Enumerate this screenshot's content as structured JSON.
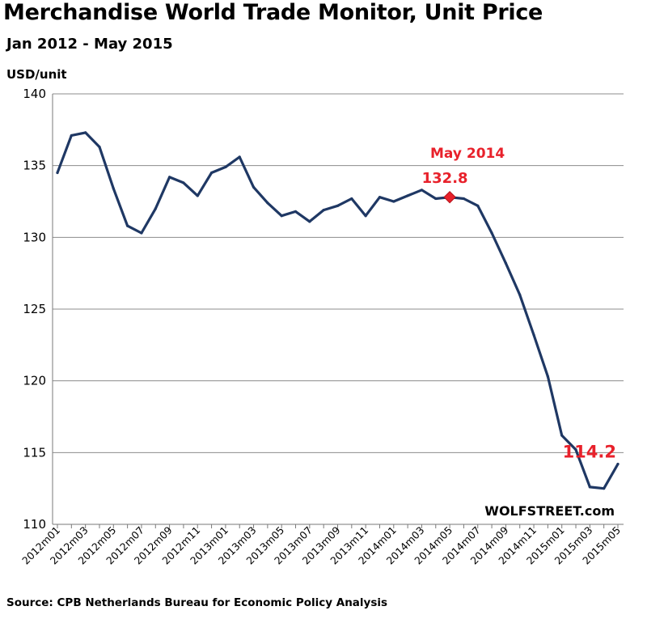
{
  "chart_data": {
    "type": "line",
    "title": "Merchandise World Trade Monitor, Unit Price",
    "subtitle": "Jan 2012 - May 2015",
    "ylabel": "USD/unit",
    "xlabel": "",
    "ylim": [
      110,
      140
    ],
    "yticks": [
      110,
      115,
      120,
      125,
      130,
      135,
      140
    ],
    "grid": true,
    "categories": [
      "2012m01",
      "2012m02",
      "2012m03",
      "2012m04",
      "2012m05",
      "2012m06",
      "2012m07",
      "2012m08",
      "2012m09",
      "2012m10",
      "2012m11",
      "2012m12",
      "2013m01",
      "2013m02",
      "2013m03",
      "2013m04",
      "2013m05",
      "2013m06",
      "2013m07",
      "2013m08",
      "2013m09",
      "2013m10",
      "2013m11",
      "2013m12",
      "2014m01",
      "2014m02",
      "2014m03",
      "2014m04",
      "2014m05",
      "2014m06",
      "2014m07",
      "2014m08",
      "2014m09",
      "2014m10",
      "2014m11",
      "2014m12",
      "2015m01",
      "2015m02",
      "2015m03",
      "2015m04",
      "2015m05"
    ],
    "tick_labels": [
      "2012m01",
      "2012m03",
      "2012m05",
      "2012m07",
      "2012m09",
      "2012m11",
      "2013m01",
      "2013m03",
      "2013m05",
      "2013m07",
      "2013m09",
      "2013m11",
      "2014m01",
      "2014m03",
      "2014m05",
      "2014m07",
      "2014m09",
      "2014m11",
      "2015m01",
      "2015m03",
      "2015m05"
    ],
    "series": [
      {
        "name": "Unit Price",
        "color": "#1f3864",
        "values": [
          134.5,
          137.1,
          137.3,
          136.3,
          133.4,
          130.8,
          130.3,
          132.0,
          134.2,
          133.8,
          132.9,
          134.5,
          134.9,
          135.6,
          133.5,
          132.4,
          131.5,
          131.8,
          131.1,
          131.9,
          132.2,
          132.7,
          131.5,
          132.8,
          132.5,
          132.9,
          133.3,
          132.7,
          132.8,
          132.7,
          132.2,
          130.3,
          128.2,
          126.0,
          123.2,
          120.3,
          116.2,
          115.2,
          112.6,
          112.5,
          114.2
        ]
      }
    ],
    "annotations": [
      {
        "label": "May 2014",
        "value_label": "132.8",
        "category": "2014m05",
        "value": 132.8,
        "marker": "diamond",
        "color": "#e8212b"
      },
      {
        "value_label": "114.2",
        "category": "2015m05",
        "value": 114.2,
        "color": "#e8212b"
      }
    ]
  },
  "watermark": "WOLFSTREET.com",
  "source": "Source: CPB Netherlands Bureau for Economic Policy Analysis"
}
